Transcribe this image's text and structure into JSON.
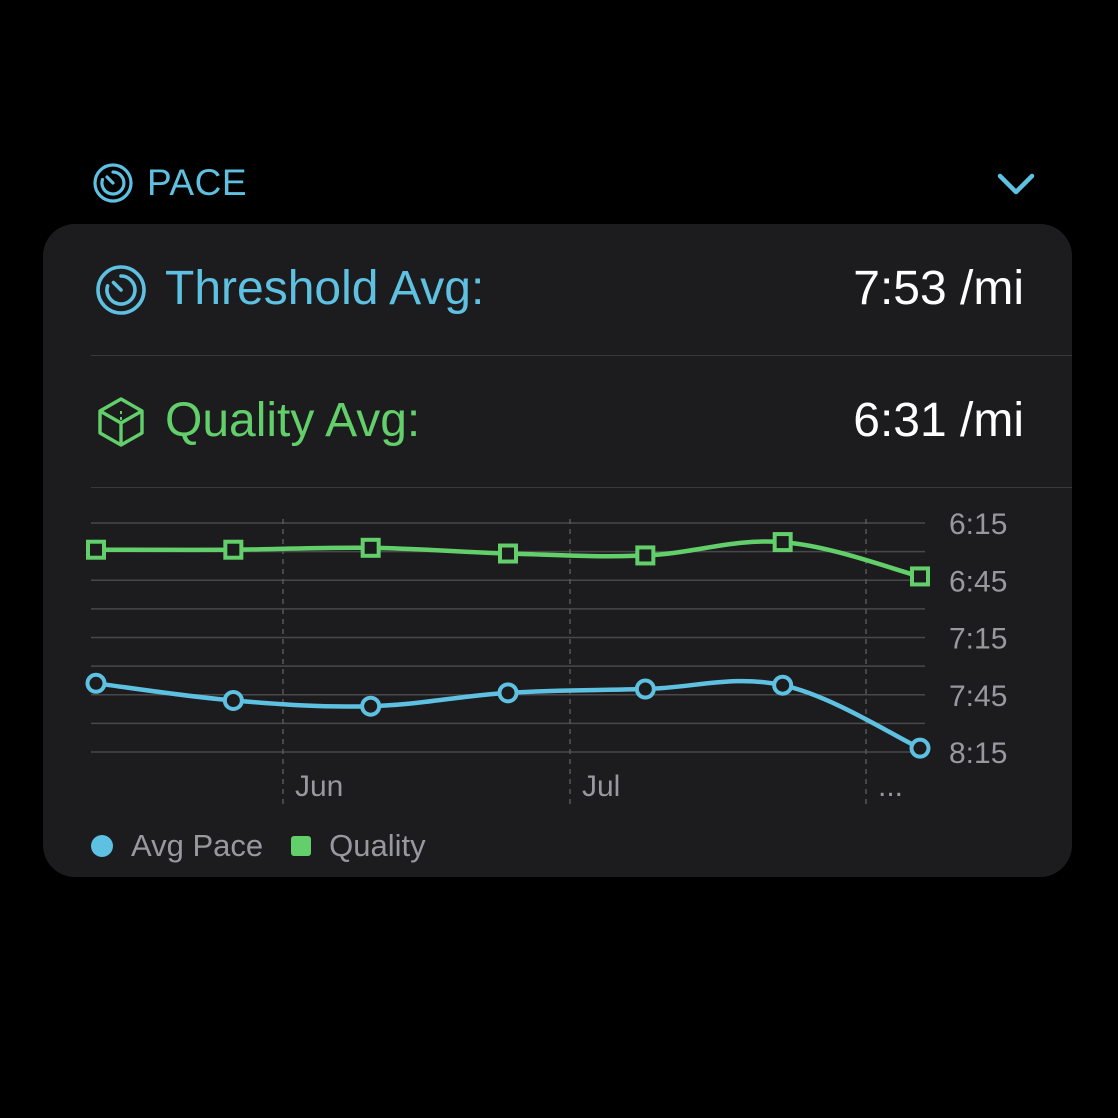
{
  "section": {
    "title": "PACE",
    "icon": "pace-dial-icon",
    "toggle_icon": "chevron-down-icon"
  },
  "stats": {
    "threshold": {
      "label": "Threshold Avg:",
      "value": "7:53 /mi",
      "icon": "pace-dial-icon",
      "color": "#5ec1e2"
    },
    "quality": {
      "label": "Quality Avg:",
      "value": "6:31 /mi",
      "icon": "cube-icon",
      "color": "#62cf6a"
    }
  },
  "colors": {
    "background": "#000000",
    "card": "#1c1c1e",
    "accent_blue": "#5ec1e2",
    "accent_green": "#62cf6a",
    "grid": "#48484a",
    "axis_text": "#98989f"
  },
  "chart_data": {
    "type": "line",
    "title": "",
    "xlabel": "",
    "ylabel": "",
    "y_axis": {
      "position": "right",
      "inverted": true,
      "ticks": [
        "6:15",
        "6:45",
        "7:15",
        "7:45",
        "8:15"
      ],
      "tick_seconds": [
        375,
        405,
        435,
        465,
        495
      ],
      "ylim_seconds": [
        375,
        495
      ]
    },
    "x_axis": {
      "labels": [
        "Jun",
        "Jul",
        "..."
      ]
    },
    "series": [
      {
        "name": "Avg Pace",
        "marker": "circle",
        "color": "#5ec1e2",
        "values": [
          "7:39",
          "7:48",
          "7:51",
          "7:44",
          "7:42",
          "7:40",
          "8:13"
        ],
        "values_seconds": [
          459,
          468,
          471,
          464,
          462,
          460,
          493
        ]
      },
      {
        "name": "Quality",
        "marker": "square",
        "color": "#62cf6a",
        "values": [
          "6:29",
          "6:29",
          "6:28",
          "6:31",
          "6:32",
          "6:25",
          "6:43"
        ],
        "values_seconds": [
          389,
          389,
          388,
          391,
          392,
          385,
          403
        ]
      }
    ],
    "grid": true,
    "legend": "bottom-left"
  }
}
